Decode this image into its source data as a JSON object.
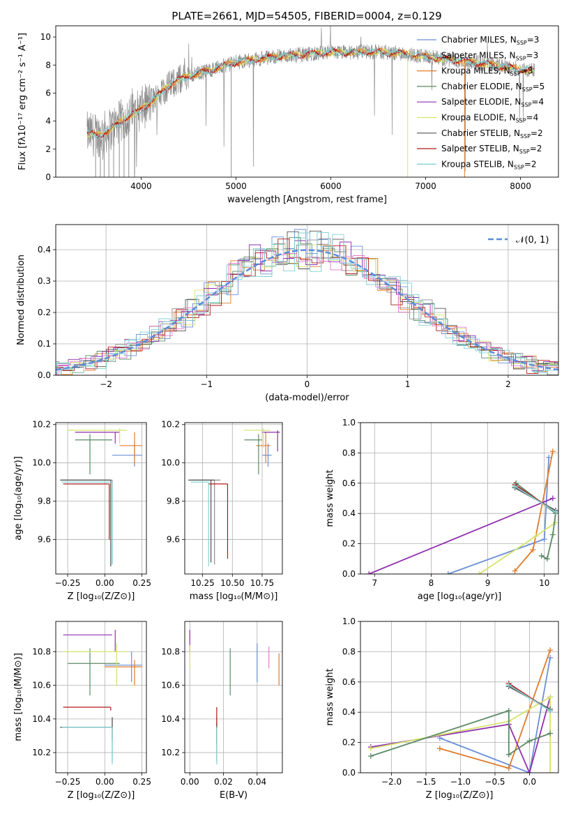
{
  "figure_title": "PLATE=2661, MJD=54505, FIBERID=0004, z=0.129",
  "colors": {
    "chabrier_miles": "#6a8fd6",
    "salpeter_miles": "#8e8e8e",
    "kroupa_miles": "#e07b2a",
    "chabrier_elodie": "#5a8a64",
    "salpeter_elodie": "#8f2fb0",
    "kroupa_elodie": "#d6e36a",
    "chabrier_stelib": "#505050",
    "salpeter_stelib": "#b01818",
    "kroupa_stelib": "#7fd0d0",
    "gauss": "#5b8cdb"
  },
  "chart_data": [
    {
      "id": "spectrum",
      "type": "line",
      "xlabel": "wavelength [Angstrom, rest frame]",
      "ylabel": "Flux [fλ10⁻¹⁷ erg cm⁻² s⁻¹ A⁻¹]",
      "xlim": [
        3100,
        8400
      ],
      "ylim": [
        0,
        10.8
      ],
      "xticks": [
        "4000",
        "5000",
        "6000",
        "7000",
        "8000"
      ],
      "yticks": [
        "0",
        "2",
        "4",
        "6",
        "8",
        "10"
      ],
      "legend": [
        {
          "key": "chabrier_miles",
          "label": "Chabrier MILES, N",
          "sub": "SSP",
          "tail": "=3"
        },
        {
          "key": "salpeter_miles",
          "label": "Salpeter MILES, N",
          "sub": "SSP",
          "tail": "=3"
        },
        {
          "key": "kroupa_miles",
          "label": "Kroupa MILES, N",
          "sub": "SSP",
          "tail": "=3"
        },
        {
          "key": "chabrier_elodie",
          "label": "Chabrier ELODIE, N",
          "sub": "SSP",
          "tail": "=5"
        },
        {
          "key": "salpeter_elodie",
          "label": "Salpeter ELODIE, N",
          "sub": "SSP",
          "tail": "=4"
        },
        {
          "key": "kroupa_elodie",
          "label": "Kroupa ELODIE, N",
          "sub": "SSP",
          "tail": "=4"
        },
        {
          "key": "chabrier_stelib",
          "label": "Chabrier STELIB, N",
          "sub": "SSP",
          "tail": "=2"
        },
        {
          "key": "salpeter_stelib",
          "label": "Salpeter STELIB, N",
          "sub": "SSP",
          "tail": "=2"
        },
        {
          "key": "kroupa_stelib",
          "label": "Kroupa STELIB, N",
          "sub": "SSP",
          "tail": "=2"
        }
      ],
      "data_envelope": {
        "x": [
          3430,
          3550,
          3650,
          3750,
          3850,
          3950,
          4050,
          4150,
          4250,
          4350,
          4450,
          4600,
          4800,
          5000,
          5200,
          5400,
          5600,
          5800,
          6000,
          6200,
          6400,
          6600,
          6800,
          7000,
          7200,
          7400,
          7600,
          7800,
          8000,
          8150
        ],
        "y": [
          3.1,
          3.0,
          3.3,
          3.8,
          4.3,
          4.6,
          5.1,
          5.6,
          6.3,
          6.8,
          7.1,
          7.4,
          7.8,
          8.2,
          8.4,
          8.6,
          8.7,
          8.8,
          8.9,
          8.9,
          8.95,
          8.9,
          8.8,
          8.6,
          8.4,
          8.3,
          8.1,
          7.9,
          7.7,
          7.6
        ]
      },
      "dropouts": [
        3520,
        3570,
        3610,
        3660,
        3710,
        3770,
        3820,
        3870,
        3930,
        4950,
        6810,
        7410
      ]
    },
    {
      "id": "residuals",
      "type": "bar",
      "xlabel": "(data-model)/error",
      "ylabel": "Normed distribution",
      "xlim": [
        -2.5,
        2.5
      ],
      "ylim": [
        0,
        0.48
      ],
      "xticks": [
        "−2",
        "−1",
        "0",
        "1",
        "2"
      ],
      "yticks": [
        "0.0",
        "0.1",
        "0.2",
        "0.3",
        "0.4"
      ],
      "legend_label": "𝒩(0, 1)",
      "grid": true
    },
    {
      "id": "age_vs_Z",
      "type": "scatter",
      "xlabel": "Z [log₁₀(Z/Z⊙)]",
      "ylabel": "age  [log₁₀(age/yr)]",
      "xlim": [
        -0.33,
        0.28
      ],
      "ylim": [
        9.42,
        10.21
      ],
      "xticks": [
        "−0.25",
        "0.00",
        "0.25"
      ],
      "xtick_vals": [
        -0.25,
        0,
        0.25
      ],
      "yticks": [
        "9.6",
        "9.8",
        "10.0",
        "10.2"
      ],
      "ytick_vals": [
        9.6,
        9.8,
        10.0,
        10.2
      ],
      "points": [
        {
          "k": "chabrier_miles",
          "x": 0.2,
          "y": 10.04,
          "xl": 0.05,
          "xh": 0.25,
          "yl": 9.98,
          "yh": 10.1
        },
        {
          "k": "salpeter_miles",
          "x": 0.05,
          "y": 9.91,
          "xl": -0.3,
          "xh": 0.05,
          "yl": 9.47,
          "yh": 9.91
        },
        {
          "k": "kroupa_miles",
          "x": 0.2,
          "y": 10.09,
          "xl": 0.1,
          "xh": 0.25,
          "yl": 10.0,
          "yh": 10.16
        },
        {
          "k": "chabrier_elodie",
          "x": -0.1,
          "y": 10.12,
          "xl": -0.2,
          "xh": 0.05,
          "yl": 9.94,
          "yh": 10.15
        },
        {
          "k": "salpeter_elodie",
          "x": 0.07,
          "y": 10.16,
          "xl": -0.2,
          "xh": 0.1,
          "yl": 10.1,
          "yh": 10.16
        },
        {
          "k": "kroupa_elodie",
          "x": 0.1,
          "y": 10.17,
          "xl": -0.25,
          "xh": 0.15,
          "yl": 10.1,
          "yh": 10.18
        },
        {
          "k": "chabrier_stelib",
          "x": 0.04,
          "y": 9.91,
          "xl": -0.3,
          "xh": 0.04,
          "yl": 9.46,
          "yh": 9.91
        },
        {
          "k": "salpeter_stelib",
          "x": 0.03,
          "y": 9.89,
          "xl": -0.28,
          "xh": 0.03,
          "yl": 9.6,
          "yh": 9.89
        },
        {
          "k": "kroupa_stelib",
          "x": 0.05,
          "y": 9.9,
          "xl": -0.29,
          "xh": 0.05,
          "yl": 9.47,
          "yh": 9.9
        }
      ]
    },
    {
      "id": "age_vs_mass",
      "type": "scatter",
      "xlabel": "mass [log₁₀(M/M⊙)]",
      "ylabel": "",
      "xlim": [
        10.1,
        10.92
      ],
      "ylim": [
        9.42,
        10.21
      ],
      "xticks": [
        "10.25",
        "10.50",
        "10.75"
      ],
      "xtick_vals": [
        10.25,
        10.5,
        10.75
      ],
      "yticks": [
        "9.6",
        "9.8",
        "10.0",
        "10.2"
      ],
      "ytick_vals": [
        9.6,
        9.8,
        10.0,
        10.2
      ],
      "points": [
        {
          "k": "chabrier_miles",
          "x": 10.8,
          "y": 10.04,
          "xl": 10.75,
          "xh": 10.83,
          "yl": 9.98,
          "yh": 10.1
        },
        {
          "k": "salpeter_miles",
          "x": 10.35,
          "y": 9.91,
          "xl": 10.15,
          "xh": 10.4,
          "yl": 9.47,
          "yh": 9.91
        },
        {
          "k": "kroupa_miles",
          "x": 10.78,
          "y": 10.09,
          "xl": 10.7,
          "xh": 10.82,
          "yl": 10.0,
          "yh": 10.16
        },
        {
          "k": "chabrier_elodie",
          "x": 10.72,
          "y": 10.12,
          "xl": 10.6,
          "xh": 10.75,
          "yl": 9.94,
          "yh": 10.15
        },
        {
          "k": "salpeter_elodie",
          "x": 10.88,
          "y": 10.16,
          "xl": 10.75,
          "xh": 10.9,
          "yl": 10.06,
          "yh": 10.17
        },
        {
          "k": "kroupa_elodie",
          "x": 10.76,
          "y": 10.17,
          "xl": 10.6,
          "xh": 10.82,
          "yl": 10.08,
          "yh": 10.18
        },
        {
          "k": "chabrier_stelib",
          "x": 10.32,
          "y": 9.91,
          "xl": 10.13,
          "xh": 10.35,
          "yl": 9.48,
          "yh": 9.91
        },
        {
          "k": "salpeter_stelib",
          "x": 10.46,
          "y": 9.89,
          "xl": 10.3,
          "xh": 10.46,
          "yl": 9.5,
          "yh": 9.89
        },
        {
          "k": "kroupa_stelib",
          "x": 10.3,
          "y": 9.9,
          "xl": 10.15,
          "xh": 10.3,
          "yl": 9.46,
          "yh": 9.9
        }
      ]
    },
    {
      "id": "mass_weight_vs_age",
      "type": "line",
      "xlabel": "age  [log₁₀(age/yr)]",
      "ylabel": "mass weight",
      "xlim": [
        6.75,
        10.25
      ],
      "ylim": [
        0,
        1.0
      ],
      "xticks": [
        "7",
        "8",
        "9",
        "10"
      ],
      "xtick_vals": [
        7,
        8,
        9,
        10
      ],
      "yticks": [
        "0.0",
        "0.2",
        "0.4",
        "0.6",
        "0.8",
        "1.0"
      ],
      "ytick_vals": [
        0,
        0.2,
        0.4,
        0.6,
        0.8,
        1.0
      ],
      "series": [
        {
          "k": "chabrier_miles",
          "x": [
            8.3,
            10.0,
            10.08
          ],
          "y": [
            0.0,
            0.23,
            0.77
          ]
        },
        {
          "k": "kroupa_miles",
          "x": [
            9.48,
            9.8,
            10.15
          ],
          "y": [
            0.02,
            0.16,
            0.81
          ]
        },
        {
          "k": "salpeter_elodie",
          "x": [
            6.9,
            10.15
          ],
          "y": [
            0.0,
            0.5
          ]
        },
        {
          "k": "kroupa_elodie",
          "x": [
            8.85,
            9.85,
            10.2
          ],
          "y": [
            0.0,
            0.25,
            0.34
          ]
        },
        {
          "k": "chabrier_elodie",
          "x": [
            9.95,
            10.05,
            10.15,
            10.2,
            9.5
          ],
          "y": [
            0.12,
            0.1,
            0.26,
            0.4,
            0.6
          ]
        },
        {
          "k": "chabrier_stelib",
          "x": [
            9.48,
            10.2
          ],
          "y": [
            0.57,
            0.42
          ]
        },
        {
          "k": "salpeter_stelib",
          "x": [
            9.48,
            10.2
          ],
          "y": [
            0.59,
            0.41
          ]
        },
        {
          "k": "kroupa_stelib",
          "x": [
            9.48,
            10.2
          ],
          "y": [
            0.58,
            0.41
          ]
        }
      ]
    },
    {
      "id": "mass_vs_Z",
      "type": "scatter",
      "xlabel": "Z [log₁₀(Z/Z⊙)]",
      "ylabel": "mass [log₁₀(M/M⊙)]",
      "xlim": [
        -0.33,
        0.28
      ],
      "ylim": [
        10.08,
        10.98
      ],
      "xticks": [
        "−0.25",
        "0.00",
        "0.25"
      ],
      "xtick_vals": [
        -0.25,
        0,
        0.25
      ],
      "yticks": [
        "10.2",
        "10.4",
        "10.6",
        "10.8"
      ],
      "ytick_vals": [
        10.2,
        10.4,
        10.6,
        10.8
      ],
      "points": [
        {
          "k": "chabrier_miles",
          "x": 0.18,
          "y": 10.72,
          "xl": 0.0,
          "xh": 0.25,
          "yl": 10.62,
          "yh": 10.8
        },
        {
          "k": "salpeter_miles",
          "x": 0.05,
          "y": 10.35,
          "xl": -0.3,
          "xh": 0.05,
          "yl": 10.15,
          "yh": 10.41
        },
        {
          "k": "kroupa_miles",
          "x": 0.2,
          "y": 10.71,
          "xl": 0.0,
          "xh": 0.25,
          "yl": 10.6,
          "yh": 10.75
        },
        {
          "k": "chabrier_elodie",
          "x": -0.1,
          "y": 10.73,
          "xl": -0.25,
          "xh": 0.1,
          "yl": 10.54,
          "yh": 10.82
        },
        {
          "k": "salpeter_elodie",
          "x": 0.07,
          "y": 10.9,
          "xl": -0.28,
          "xh": 0.05,
          "yl": 10.8,
          "yh": 10.93
        },
        {
          "k": "kroupa_elodie",
          "x": 0.08,
          "y": 10.8,
          "xl": -0.28,
          "xh": 0.15,
          "yl": 10.6,
          "yh": 10.85
        },
        {
          "k": "chabrier_stelib",
          "x": 0.05,
          "y": 10.35,
          "xl": -0.3,
          "xh": 0.05,
          "yl": 10.27,
          "yh": 10.41
        },
        {
          "k": "salpeter_stelib",
          "x": 0.04,
          "y": 10.47,
          "xl": -0.28,
          "xh": 0.04,
          "yl": 10.45,
          "yh": 10.47
        },
        {
          "k": "kroupa_stelib",
          "x": 0.05,
          "y": 10.35,
          "xl": -0.29,
          "xh": 0.05,
          "yl": 10.13,
          "yh": 10.35
        }
      ]
    },
    {
      "id": "mass_vs_ebv",
      "type": "scatter",
      "xlabel": "E(B-V)",
      "ylabel": "",
      "xlim": [
        -0.003,
        0.055
      ],
      "ylim": [
        10.08,
        10.98
      ],
      "xticks": [
        "0.00",
        "0.02",
        "0.04"
      ],
      "xtick_vals": [
        0,
        0.02,
        0.04
      ],
      "yticks": [
        "10.2",
        "10.4",
        "10.6",
        "10.8"
      ],
      "ytick_vals": [
        10.2,
        10.4,
        10.6,
        10.8
      ],
      "points": [
        {
          "k": "chabrier_miles",
          "x": 0.04,
          "y": 10.72,
          "yl": 10.62,
          "yh": 10.85
        },
        {
          "k": "salpeter_miles",
          "x": 0.016,
          "y": 10.3,
          "yl": 10.15,
          "yh": 10.41
        },
        {
          "k": "kroupa_miles",
          "x": 0.053,
          "y": 10.7,
          "yl": 10.6,
          "yh": 10.79
        },
        {
          "k": "chabrier_elodie",
          "x": 0.024,
          "y": 10.72,
          "yl": 10.54,
          "yh": 10.82
        },
        {
          "k": "salpeter_elodie",
          "x": 0.0,
          "y": 10.88,
          "yl": 10.8,
          "yh": 10.93
        },
        {
          "k": "kroupa_elodie",
          "x": 0.0,
          "y": 10.78,
          "yl": 10.69,
          "yh": 10.84
        },
        {
          "k": "chabrier_stelib",
          "x": 0.016,
          "y": 10.3,
          "yl": 10.25,
          "yh": 10.38
        },
        {
          "k": "salpeter_stelib",
          "x": 0.016,
          "y": 10.44,
          "yl": 10.36,
          "yh": 10.47
        },
        {
          "k": "kroupa_stelib",
          "x": 0.016,
          "y": 10.25,
          "yl": 10.13,
          "yh": 10.35
        },
        {
          "k": "salpeter_elodie_pink",
          "x": 0.047,
          "y": 10.78,
          "yl": 10.7,
          "yh": 10.83
        }
      ]
    },
    {
      "id": "mass_weight_vs_Z",
      "type": "line",
      "xlabel": "Z [log₁₀(Z/Z⊙)]",
      "ylabel": "mass weight",
      "xlim": [
        -2.45,
        0.42
      ],
      "ylim": [
        0,
        1.0
      ],
      "xticks": [
        "−2.0",
        "−1.5",
        "−1.0",
        "−0.5",
        "0.0"
      ],
      "xtick_vals": [
        -2.0,
        -1.5,
        -1.0,
        -0.5,
        0
      ],
      "yticks": [
        "0.0",
        "0.2",
        "0.4",
        "0.6",
        "0.8",
        "1.0"
      ],
      "ytick_vals": [
        0,
        0.2,
        0.4,
        0.6,
        0.8,
        1.0
      ],
      "series": [
        {
          "k": "chabrier_miles",
          "x": [
            -1.3,
            0.0,
            0.3
          ],
          "y": [
            0.23,
            0.0,
            0.76
          ]
        },
        {
          "k": "kroupa_miles",
          "x": [
            -1.3,
            -0.3,
            0.3
          ],
          "y": [
            0.16,
            0.03,
            0.81
          ]
        },
        {
          "k": "salpeter_elodie",
          "x": [
            -2.3,
            -0.3,
            0.0,
            0.3
          ],
          "y": [
            0.17,
            0.32,
            0.0,
            0.5
          ]
        },
        {
          "k": "kroupa_elodie",
          "x": [
            -2.3,
            -0.3,
            0.3,
            0.3
          ],
          "y": [
            0.16,
            0.34,
            0.5,
            0.0
          ]
        },
        {
          "k": "chabrier_elodie",
          "x": [
            -2.3,
            -0.3,
            -0.3,
            0.0,
            0.3
          ],
          "y": [
            0.11,
            0.41,
            0.12,
            0.21,
            0.26
          ]
        },
        {
          "k": "chabrier_stelib",
          "x": [
            -0.3,
            0.3
          ],
          "y": [
            0.57,
            0.42
          ]
        },
        {
          "k": "salpeter_stelib",
          "x": [
            -0.3,
            0.3
          ],
          "y": [
            0.59,
            0.41
          ]
        },
        {
          "k": "kroupa_stelib",
          "x": [
            -0.3,
            0.3
          ],
          "y": [
            0.58,
            0.41
          ]
        }
      ]
    }
  ]
}
